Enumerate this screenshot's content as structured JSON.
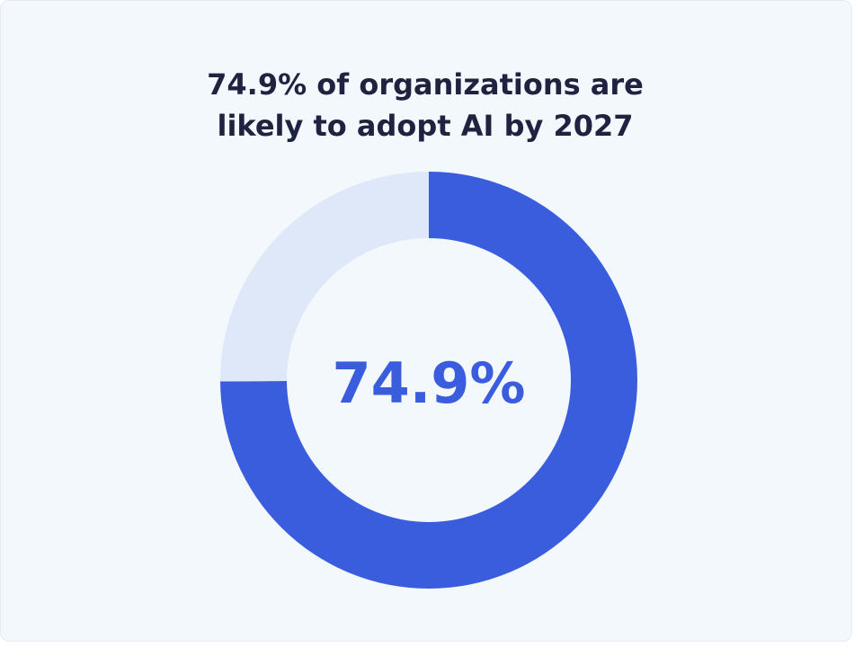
{
  "title_lines": [
    "74.9% of organizations are",
    "likely to adopt AI by 2027"
  ],
  "center_label": "74.9%",
  "colors": {
    "primary": "#3a5ddd",
    "remainder": "#dfe8f8",
    "background": "#f3f8fd",
    "title": "#1f2340"
  },
  "chart_data": {
    "type": "pie",
    "variant": "donut",
    "title": "74.9% of organizations are likely to adopt AI by 2027",
    "slices": [
      {
        "value": 74.9
      },
      {
        "value": 25.1
      }
    ],
    "center_text": "74.9%"
  }
}
